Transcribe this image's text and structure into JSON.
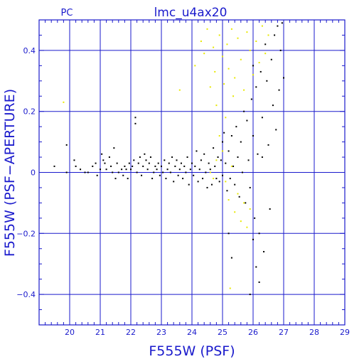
{
  "chart_data": {
    "type": "scatter",
    "title": "lmc_u4ax20",
    "corner_label": "PC",
    "xlabel": "F555W (PSF)",
    "ylabel": "F555W (PSF−APERTURE)",
    "xlim": [
      19,
      29
    ],
    "ylim": [
      -0.5,
      0.5
    ],
    "x_major_ticks": [
      20,
      21,
      22,
      23,
      24,
      25,
      26,
      27,
      28,
      29
    ],
    "y_major_ticks": [
      -0.4,
      -0.2,
      0,
      0.2,
      0.4
    ],
    "x_tick_labels": [
      "20",
      "21",
      "22",
      "23",
      "24",
      "25",
      "26",
      "27",
      "28",
      "29"
    ],
    "y_tick_labels": [
      "−0.4",
      "−0.2",
      "0",
      "0.2",
      "0.4"
    ],
    "grid": true,
    "colors": {
      "axes": "#1a1acc",
      "series_black": "#000000",
      "series_yellow": "#e8e800"
    },
    "series": [
      {
        "color": "#000000",
        "points": [
          [
            19.5,
            0.02
          ],
          [
            19.9,
            0.09
          ],
          [
            19.9,
            0.0
          ],
          [
            20.15,
            0.04
          ],
          [
            20.2,
            0.02
          ],
          [
            20.35,
            0.01
          ],
          [
            20.5,
            0.0
          ],
          [
            20.6,
            0.0
          ],
          [
            20.75,
            0.02
          ],
          [
            20.85,
            0.03
          ],
          [
            20.9,
            -0.01
          ],
          [
            21.0,
            0.01
          ],
          [
            21.05,
            0.06
          ],
          [
            21.1,
            0.04
          ],
          [
            21.15,
            0.03
          ],
          [
            21.2,
            0.01
          ],
          [
            21.3,
            0.05
          ],
          [
            21.35,
            0.02
          ],
          [
            21.4,
            0.0
          ],
          [
            21.45,
            0.08
          ],
          [
            21.5,
            -0.02
          ],
          [
            21.55,
            0.03
          ],
          [
            21.6,
            0.0
          ],
          [
            21.7,
            0.01
          ],
          [
            21.75,
            -0.01
          ],
          [
            21.8,
            0.02
          ],
          [
            21.85,
            0.01
          ],
          [
            21.9,
            -0.02
          ],
          [
            21.95,
            0.03
          ],
          [
            22.0,
            0.01
          ],
          [
            22.05,
            0.02
          ],
          [
            22.1,
            0.04
          ],
          [
            22.15,
            0.18
          ],
          [
            22.15,
            0.16
          ],
          [
            22.2,
            0.0
          ],
          [
            22.25,
            0.03
          ],
          [
            22.3,
            0.05
          ],
          [
            22.35,
            -0.01
          ],
          [
            22.4,
            0.02
          ],
          [
            22.45,
            0.06
          ],
          [
            22.5,
            0.04
          ],
          [
            22.55,
            0.01
          ],
          [
            22.6,
            0.03
          ],
          [
            22.65,
            0.05
          ],
          [
            22.7,
            -0.02
          ],
          [
            22.75,
            0.0
          ],
          [
            22.8,
            0.02
          ],
          [
            22.85,
            0.01
          ],
          [
            22.9,
            0.03
          ],
          [
            22.95,
            -0.01
          ],
          [
            23.0,
            0.02
          ],
          [
            23.05,
            0.0
          ],
          [
            23.1,
            0.04
          ],
          [
            23.15,
            -0.02
          ],
          [
            23.2,
            0.01
          ],
          [
            23.25,
            0.03
          ],
          [
            23.3,
            0.0
          ],
          [
            23.35,
            0.05
          ],
          [
            23.4,
            -0.03
          ],
          [
            23.45,
            0.02
          ],
          [
            23.5,
            0.04
          ],
          [
            23.55,
            -0.01
          ],
          [
            23.6,
            0.01
          ],
          [
            23.65,
            0.03
          ],
          [
            23.7,
            -0.02
          ],
          [
            23.75,
            0.02
          ],
          [
            23.8,
            0.0
          ],
          [
            23.85,
            0.05
          ],
          [
            23.9,
            -0.04
          ],
          [
            23.95,
            0.01
          ],
          [
            24.0,
            0.03
          ],
          [
            24.05,
            -0.01
          ],
          [
            24.1,
            0.02
          ],
          [
            24.15,
            0.07
          ],
          [
            24.2,
            -0.03
          ],
          [
            24.25,
            0.01
          ],
          [
            24.3,
            0.04
          ],
          [
            24.35,
            -0.02
          ],
          [
            24.4,
            0.06
          ],
          [
            24.45,
            0.0
          ],
          [
            24.5,
            -0.05
          ],
          [
            24.55,
            0.03
          ],
          [
            24.6,
            0.01
          ],
          [
            24.65,
            -0.04
          ],
          [
            24.7,
            0.08
          ],
          [
            24.75,
            0.02
          ],
          [
            24.8,
            -0.02
          ],
          [
            24.85,
            0.05
          ],
          [
            24.9,
            -0.03
          ],
          [
            24.95,
            0.04
          ],
          [
            25.0,
            0.1
          ],
          [
            25.0,
            -0.01
          ],
          [
            25.05,
            0.13
          ],
          [
            25.1,
            0.03
          ],
          [
            25.15,
            -0.06
          ],
          [
            25.2,
            0.07
          ],
          [
            25.25,
            -0.02
          ],
          [
            25.3,
            0.12
          ],
          [
            25.35,
            0.02
          ],
          [
            25.4,
            -0.04
          ],
          [
            25.45,
            0.15
          ],
          [
            25.5,
            0.05
          ],
          [
            25.55,
            -0.08
          ],
          [
            25.6,
            0.1
          ],
          [
            25.65,
            0.0
          ],
          [
            25.7,
            0.2
          ],
          [
            25.75,
            -0.1
          ],
          [
            25.8,
            0.17
          ],
          [
            25.85,
            0.04
          ],
          [
            25.9,
            -0.05
          ],
          [
            25.95,
            0.24
          ],
          [
            26.0,
            0.35
          ],
          [
            26.0,
            0.12
          ],
          [
            26.05,
            -0.15
          ],
          [
            26.1,
            0.28
          ],
          [
            26.15,
            0.06
          ],
          [
            26.2,
            -0.2
          ],
          [
            26.25,
            0.33
          ],
          [
            26.3,
            0.18
          ],
          [
            26.35,
            -0.26
          ],
          [
            26.4,
            0.42
          ],
          [
            26.45,
            0.3
          ],
          [
            26.5,
            0.09
          ],
          [
            26.55,
            -0.12
          ],
          [
            26.6,
            0.37
          ],
          [
            26.65,
            0.22
          ],
          [
            26.7,
            0.45
          ],
          [
            26.75,
            0.14
          ],
          [
            26.8,
            0.48
          ],
          [
            26.85,
            0.27
          ],
          [
            26.9,
            0.4
          ],
          [
            26.95,
            0.49
          ],
          [
            27.0,
            0.31
          ],
          [
            26.1,
            -0.31
          ],
          [
            26.2,
            -0.36
          ],
          [
            25.9,
            -0.4
          ],
          [
            26.0,
            -0.22
          ],
          [
            25.3,
            -0.28
          ],
          [
            25.2,
            -0.2
          ],
          [
            26.3,
            0.05
          ]
        ]
      },
      {
        "color": "#e8e800",
        "points": [
          [
            19.8,
            0.23
          ],
          [
            23.6,
            0.27
          ],
          [
            24.1,
            0.35
          ],
          [
            24.3,
            0.43
          ],
          [
            24.4,
            0.39
          ],
          [
            24.5,
            0.47
          ],
          [
            24.6,
            0.28
          ],
          [
            24.7,
            0.41
          ],
          [
            24.75,
            0.33
          ],
          [
            24.8,
            0.22
          ],
          [
            24.9,
            0.45
          ],
          [
            25.0,
            0.38
          ],
          [
            25.05,
            0.29
          ],
          [
            25.1,
            0.18
          ],
          [
            25.15,
            0.42
          ],
          [
            25.2,
            0.34
          ],
          [
            25.3,
            0.47
          ],
          [
            25.35,
            0.25
          ],
          [
            25.4,
            0.31
          ],
          [
            25.5,
            0.44
          ],
          [
            25.6,
            0.37
          ],
          [
            25.7,
            0.27
          ],
          [
            25.8,
            0.46
          ],
          [
            25.9,
            0.4
          ],
          [
            26.0,
            0.32
          ],
          [
            26.1,
            0.43
          ],
          [
            26.2,
            0.36
          ],
          [
            26.3,
            0.48
          ],
          [
            26.4,
            0.39
          ],
          [
            26.5,
            0.45
          ],
          [
            24.9,
            0.12
          ],
          [
            25.0,
            0.07
          ],
          [
            25.1,
            -0.03
          ],
          [
            25.2,
            -0.09
          ],
          [
            25.3,
            0.02
          ],
          [
            25.4,
            -0.13
          ],
          [
            25.5,
            -0.07
          ],
          [
            25.6,
            -0.16
          ],
          [
            25.7,
            -0.1
          ],
          [
            25.8,
            -0.18
          ],
          [
            25.9,
            -0.12
          ],
          [
            24.7,
            -0.02
          ],
          [
            24.8,
            0.04
          ],
          [
            25.25,
            -0.38
          ],
          [
            24.6,
            0.0
          ]
        ]
      }
    ]
  }
}
